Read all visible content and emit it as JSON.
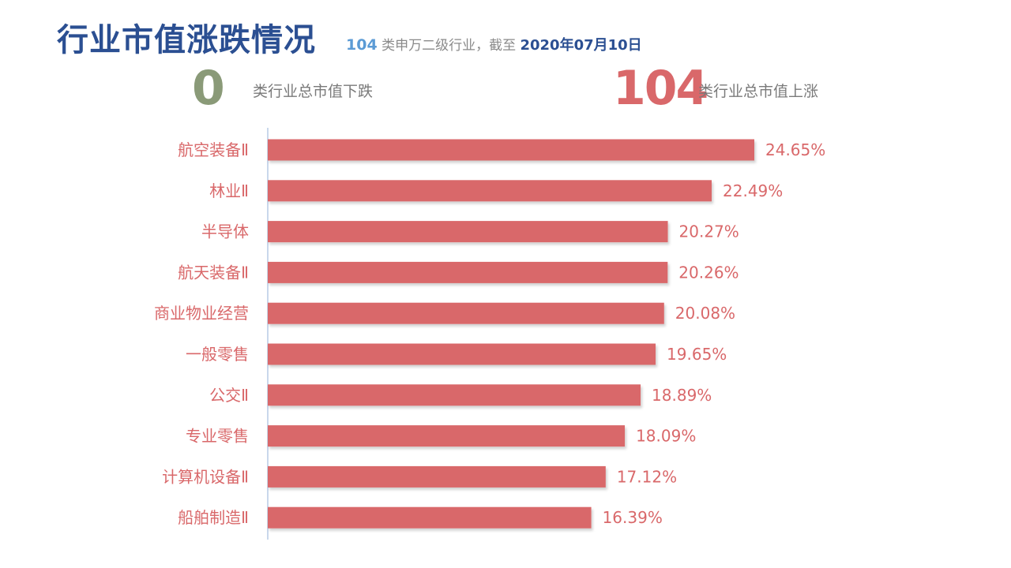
{
  "header": {
    "title": "行业市值涨跌情况",
    "subtitle_count": "104",
    "subtitle_text": " 类申万二级行业，截至 ",
    "subtitle_date": "2020年07月10日"
  },
  "summary": {
    "down_count": "0",
    "down_label": "类行业总市值下跌",
    "up_count": "104",
    "up_label": "类行业总市值上涨"
  },
  "colors": {
    "title": "#2b4f92",
    "bar": "#d9686a",
    "label": "#d9686a",
    "axis": "#b7cbe6",
    "down": "#8a9a78",
    "up": "#d9686a"
  },
  "chart_data": {
    "type": "bar",
    "orientation": "horizontal",
    "categories": [
      "航空装备Ⅱ",
      "林业Ⅱ",
      "半导体",
      "航天装备Ⅱ",
      "商业物业经营",
      "一般零售",
      "公交Ⅱ",
      "专业零售",
      "计算机设备Ⅱ",
      "船舶制造Ⅱ"
    ],
    "values": [
      24.65,
      22.49,
      20.27,
      20.26,
      20.08,
      19.65,
      18.89,
      18.09,
      17.12,
      16.39
    ],
    "value_labels": [
      "24.65%",
      "22.49%",
      "20.27%",
      "20.26%",
      "20.08%",
      "19.65%",
      "18.89%",
      "18.09%",
      "17.12%",
      "16.39%"
    ],
    "xlim": [
      0,
      31.04
    ],
    "grid": false,
    "legend": "none"
  }
}
